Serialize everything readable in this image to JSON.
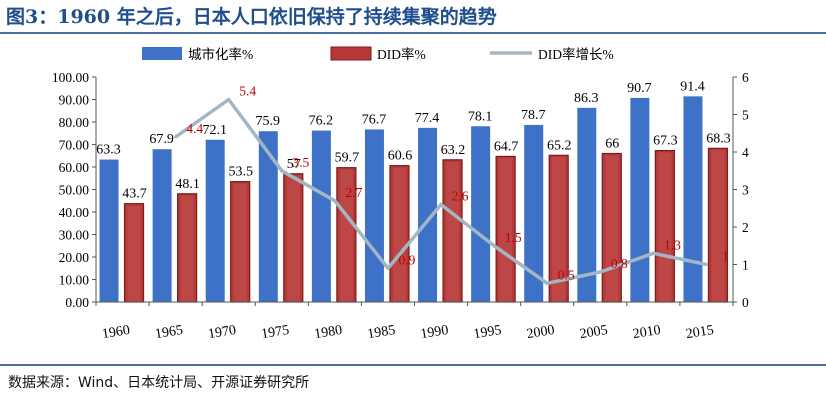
{
  "figure_title": "图3：1960 年之后，日本人口依旧保持了持续集聚的趋势",
  "source_note": "数据来源：Wind、日本统计局、开源证券研究所",
  "colors": {
    "title": "#1f4e8c",
    "bar_urban": "#3d72c8",
    "bar_did": "#b83838",
    "line_growth": "#a3b6c3",
    "label_did": "#c00000"
  },
  "chart_data": {
    "type": "bar",
    "categories": [
      "1960",
      "1965",
      "1970",
      "1975",
      "1980",
      "1985",
      "1990",
      "1995",
      "2000",
      "2005",
      "2010",
      "2015"
    ],
    "series": [
      {
        "name": "城市化率%",
        "type": "bar",
        "axis": "left",
        "values": [
          63.3,
          67.9,
          72.1,
          75.9,
          76.2,
          76.7,
          77.4,
          78.1,
          78.7,
          86.3,
          90.7,
          91.4
        ]
      },
      {
        "name": "DID率%",
        "type": "bar",
        "axis": "left",
        "values": [
          43.7,
          48.1,
          53.5,
          57,
          59.7,
          60.6,
          63.2,
          64.7,
          65.2,
          66,
          67.3,
          68.3
        ]
      },
      {
        "name": "DID率增长%",
        "type": "line",
        "axis": "right",
        "values": [
          null,
          4.4,
          5.4,
          3.5,
          2.7,
          0.9,
          2.6,
          1.5,
          0.5,
          0.8,
          1.3,
          1
        ]
      }
    ],
    "labels": {
      "urban": [
        "63.3",
        "67.9",
        "72.1",
        "75.9",
        "76.2",
        "76.7",
        "77.4",
        "78.1",
        "78.7",
        "86.3",
        "90.7",
        "91.4"
      ],
      "did": [
        "43.7",
        "48.1",
        "53.5",
        "57",
        "59.7",
        "60.6",
        "63.2",
        "64.7",
        "65.2",
        "66",
        "67.3",
        "68.3"
      ],
      "growth": [
        "",
        "4.4",
        "5.4",
        "3.5",
        "2.7",
        "0.9",
        "2.6",
        "1.5",
        "0.5",
        "0.8",
        "1.3",
        "1"
      ]
    },
    "y_left": {
      "ylim": [
        0,
        100
      ],
      "ticks": [
        "0.00",
        "10.00",
        "20.00",
        "30.00",
        "40.00",
        "50.00",
        "60.00",
        "70.00",
        "80.00",
        "90.00",
        "100.00"
      ]
    },
    "y_right": {
      "ylim": [
        0,
        6
      ],
      "ticks": [
        "0",
        "1",
        "2",
        "3",
        "4",
        "5",
        "6"
      ]
    },
    "grid": false,
    "legend_position": "top"
  }
}
